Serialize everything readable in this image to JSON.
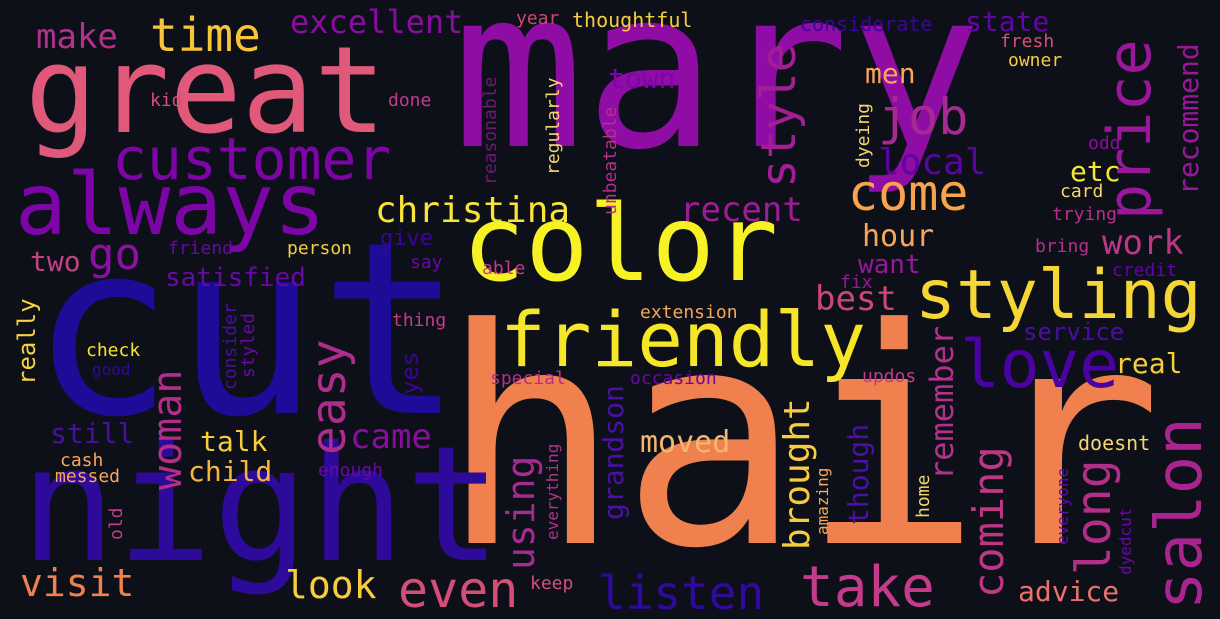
{
  "colors": {
    "background": "#0d1018"
  },
  "words": [
    {
      "text": "mary",
      "color": "#8f0da4"
    },
    {
      "text": "hair",
      "color": "#f0804e"
    },
    {
      "text": "cut",
      "color": "#1c0c97"
    },
    {
      "text": "night",
      "color": "#2e0a9b"
    },
    {
      "text": "great",
      "color": "#e0597a"
    },
    {
      "text": "color",
      "color": "#f6f226"
    },
    {
      "text": "always",
      "color": "#7d05a8"
    },
    {
      "text": "customer",
      "color": "#7d05a8"
    },
    {
      "text": "friendly",
      "color": "#f6e62a"
    },
    {
      "text": "styling",
      "color": "#f4d636"
    },
    {
      "text": "salon",
      "color": "#a9248e"
    },
    {
      "text": "take",
      "color": "#c43b8b"
    },
    {
      "text": "price",
      "color": "#9a179b"
    },
    {
      "text": "love",
      "color": "#4a03a2"
    },
    {
      "text": "long",
      "color": "#b32e88"
    },
    {
      "text": "style",
      "color": "#a31e95"
    },
    {
      "text": "even",
      "color": "#d44f78"
    },
    {
      "text": "come",
      "color": "#f9a44a"
    },
    {
      "text": "job",
      "color": "#a72a92"
    },
    {
      "text": "easy",
      "color": "#ad2c8c"
    },
    {
      "text": "woman",
      "color": "#b32e88"
    },
    {
      "text": "listen",
      "color": "#2f0a9c"
    },
    {
      "text": "time",
      "color": "#f7c53a"
    },
    {
      "text": "go",
      "color": "#8c10a4"
    },
    {
      "text": "coming",
      "color": "#bd3784"
    },
    {
      "text": "visit",
      "color": "#f0804e"
    },
    {
      "text": "look",
      "color": "#f7cd3e"
    },
    {
      "text": "christina",
      "color": "#f8e338"
    },
    {
      "text": "using",
      "color": "#a72a92"
    },
    {
      "text": "brought",
      "color": "#f7cd3e"
    },
    {
      "text": "remember",
      "color": "#b3308c"
    },
    {
      "text": "make",
      "color": "#b3308c"
    },
    {
      "text": "excellent",
      "color": "#8a0da2"
    },
    {
      "text": "recent",
      "color": "#9e1c97"
    },
    {
      "text": "local",
      "color": "#5b04a3"
    },
    {
      "text": "work",
      "color": "#bd3784"
    },
    {
      "text": "best",
      "color": "#cc4778"
    },
    {
      "text": "came",
      "color": "#8a0da2"
    },
    {
      "text": "hour",
      "color": "#f8a65a"
    },
    {
      "text": "moved",
      "color": "#f5b66e"
    },
    {
      "text": "state",
      "color": "#6104a8"
    },
    {
      "text": "town",
      "color": "#7e05aa"
    },
    {
      "text": "men",
      "color": "#f8a65a"
    },
    {
      "text": "etc",
      "color": "#f6e62a"
    },
    {
      "text": "recommend",
      "color": "#9a179b"
    },
    {
      "text": "real",
      "color": "#f7cd3e"
    },
    {
      "text": "advice",
      "color": "#e9726a"
    },
    {
      "text": "grandson",
      "color": "#4b10a6"
    },
    {
      "text": "though",
      "color": "#4b10a6"
    },
    {
      "text": "talk",
      "color": "#f7cd3e"
    },
    {
      "text": "child",
      "color": "#f7b73a"
    },
    {
      "text": "two",
      "color": "#c04283"
    },
    {
      "text": "still",
      "color": "#4b0ea4"
    },
    {
      "text": "satisfied",
      "color": "#6908a6"
    },
    {
      "text": "give",
      "color": "#3a049a"
    },
    {
      "text": "want",
      "color": "#9a179b"
    },
    {
      "text": "service",
      "color": "#4b0ea4"
    },
    {
      "text": "yes",
      "color": "#3a049a"
    },
    {
      "text": "really",
      "color": "#f7d13e"
    },
    {
      "text": "doesnt",
      "color": "#f5d66e"
    },
    {
      "text": "thoughtful",
      "color": "#f7cd3e"
    },
    {
      "text": "considerate",
      "color": "#3a049a"
    },
    {
      "text": "fresh",
      "color": "#d44f78"
    },
    {
      "text": "owner",
      "color": "#f7cd3e"
    },
    {
      "text": "year",
      "color": "#cc4778"
    },
    {
      "text": "kid",
      "color": "#d44f78"
    },
    {
      "text": "done",
      "color": "#c43b8b"
    },
    {
      "text": "reasonable",
      "color": "#6d1a76"
    },
    {
      "text": "regularly",
      "color": "#f5d66e"
    },
    {
      "text": "unbeatable",
      "color": "#b3308c"
    },
    {
      "text": "dyeing",
      "color": "#f5d66e"
    },
    {
      "text": "odd",
      "color": "#8a0da2"
    },
    {
      "text": "card",
      "color": "#f5d66e"
    },
    {
      "text": "trying",
      "color": "#b3308c"
    },
    {
      "text": "bring",
      "color": "#b3308c"
    },
    {
      "text": "credit",
      "color": "#6104a8"
    },
    {
      "text": "friend",
      "color": "#6908a6"
    },
    {
      "text": "person",
      "color": "#f7cd3e"
    },
    {
      "text": "say",
      "color": "#6908a6"
    },
    {
      "text": "able",
      "color": "#c43b8b"
    },
    {
      "text": "fix",
      "color": "#9a179b"
    },
    {
      "text": "extension",
      "color": "#f8a65a"
    },
    {
      "text": "thing",
      "color": "#c43b8b"
    },
    {
      "text": "consider",
      "color": "#4b0ea4"
    },
    {
      "text": "styled",
      "color": "#6908a6"
    },
    {
      "text": "check",
      "color": "#f6e62a"
    },
    {
      "text": "good",
      "color": "#2e0a9b"
    },
    {
      "text": "special",
      "color": "#b3308c"
    },
    {
      "text": "occasion",
      "color": "#6908a6"
    },
    {
      "text": "updos",
      "color": "#c43b8b"
    },
    {
      "text": "cash",
      "color": "#f8a65a"
    },
    {
      "text": "messed",
      "color": "#f8a65a"
    },
    {
      "text": "enough",
      "color": "#6908a6"
    },
    {
      "text": "old",
      "color": "#c43b8b"
    },
    {
      "text": "everything",
      "color": "#b3308c"
    },
    {
      "text": "amazing",
      "color": "#f8a65a"
    },
    {
      "text": "home",
      "color": "#f5d66e"
    },
    {
      "text": "everyone",
      "color": "#6908a6"
    },
    {
      "text": "dyedcut",
      "color": "#6908a6"
    },
    {
      "text": "keep",
      "color": "#d44f78"
    }
  ]
}
